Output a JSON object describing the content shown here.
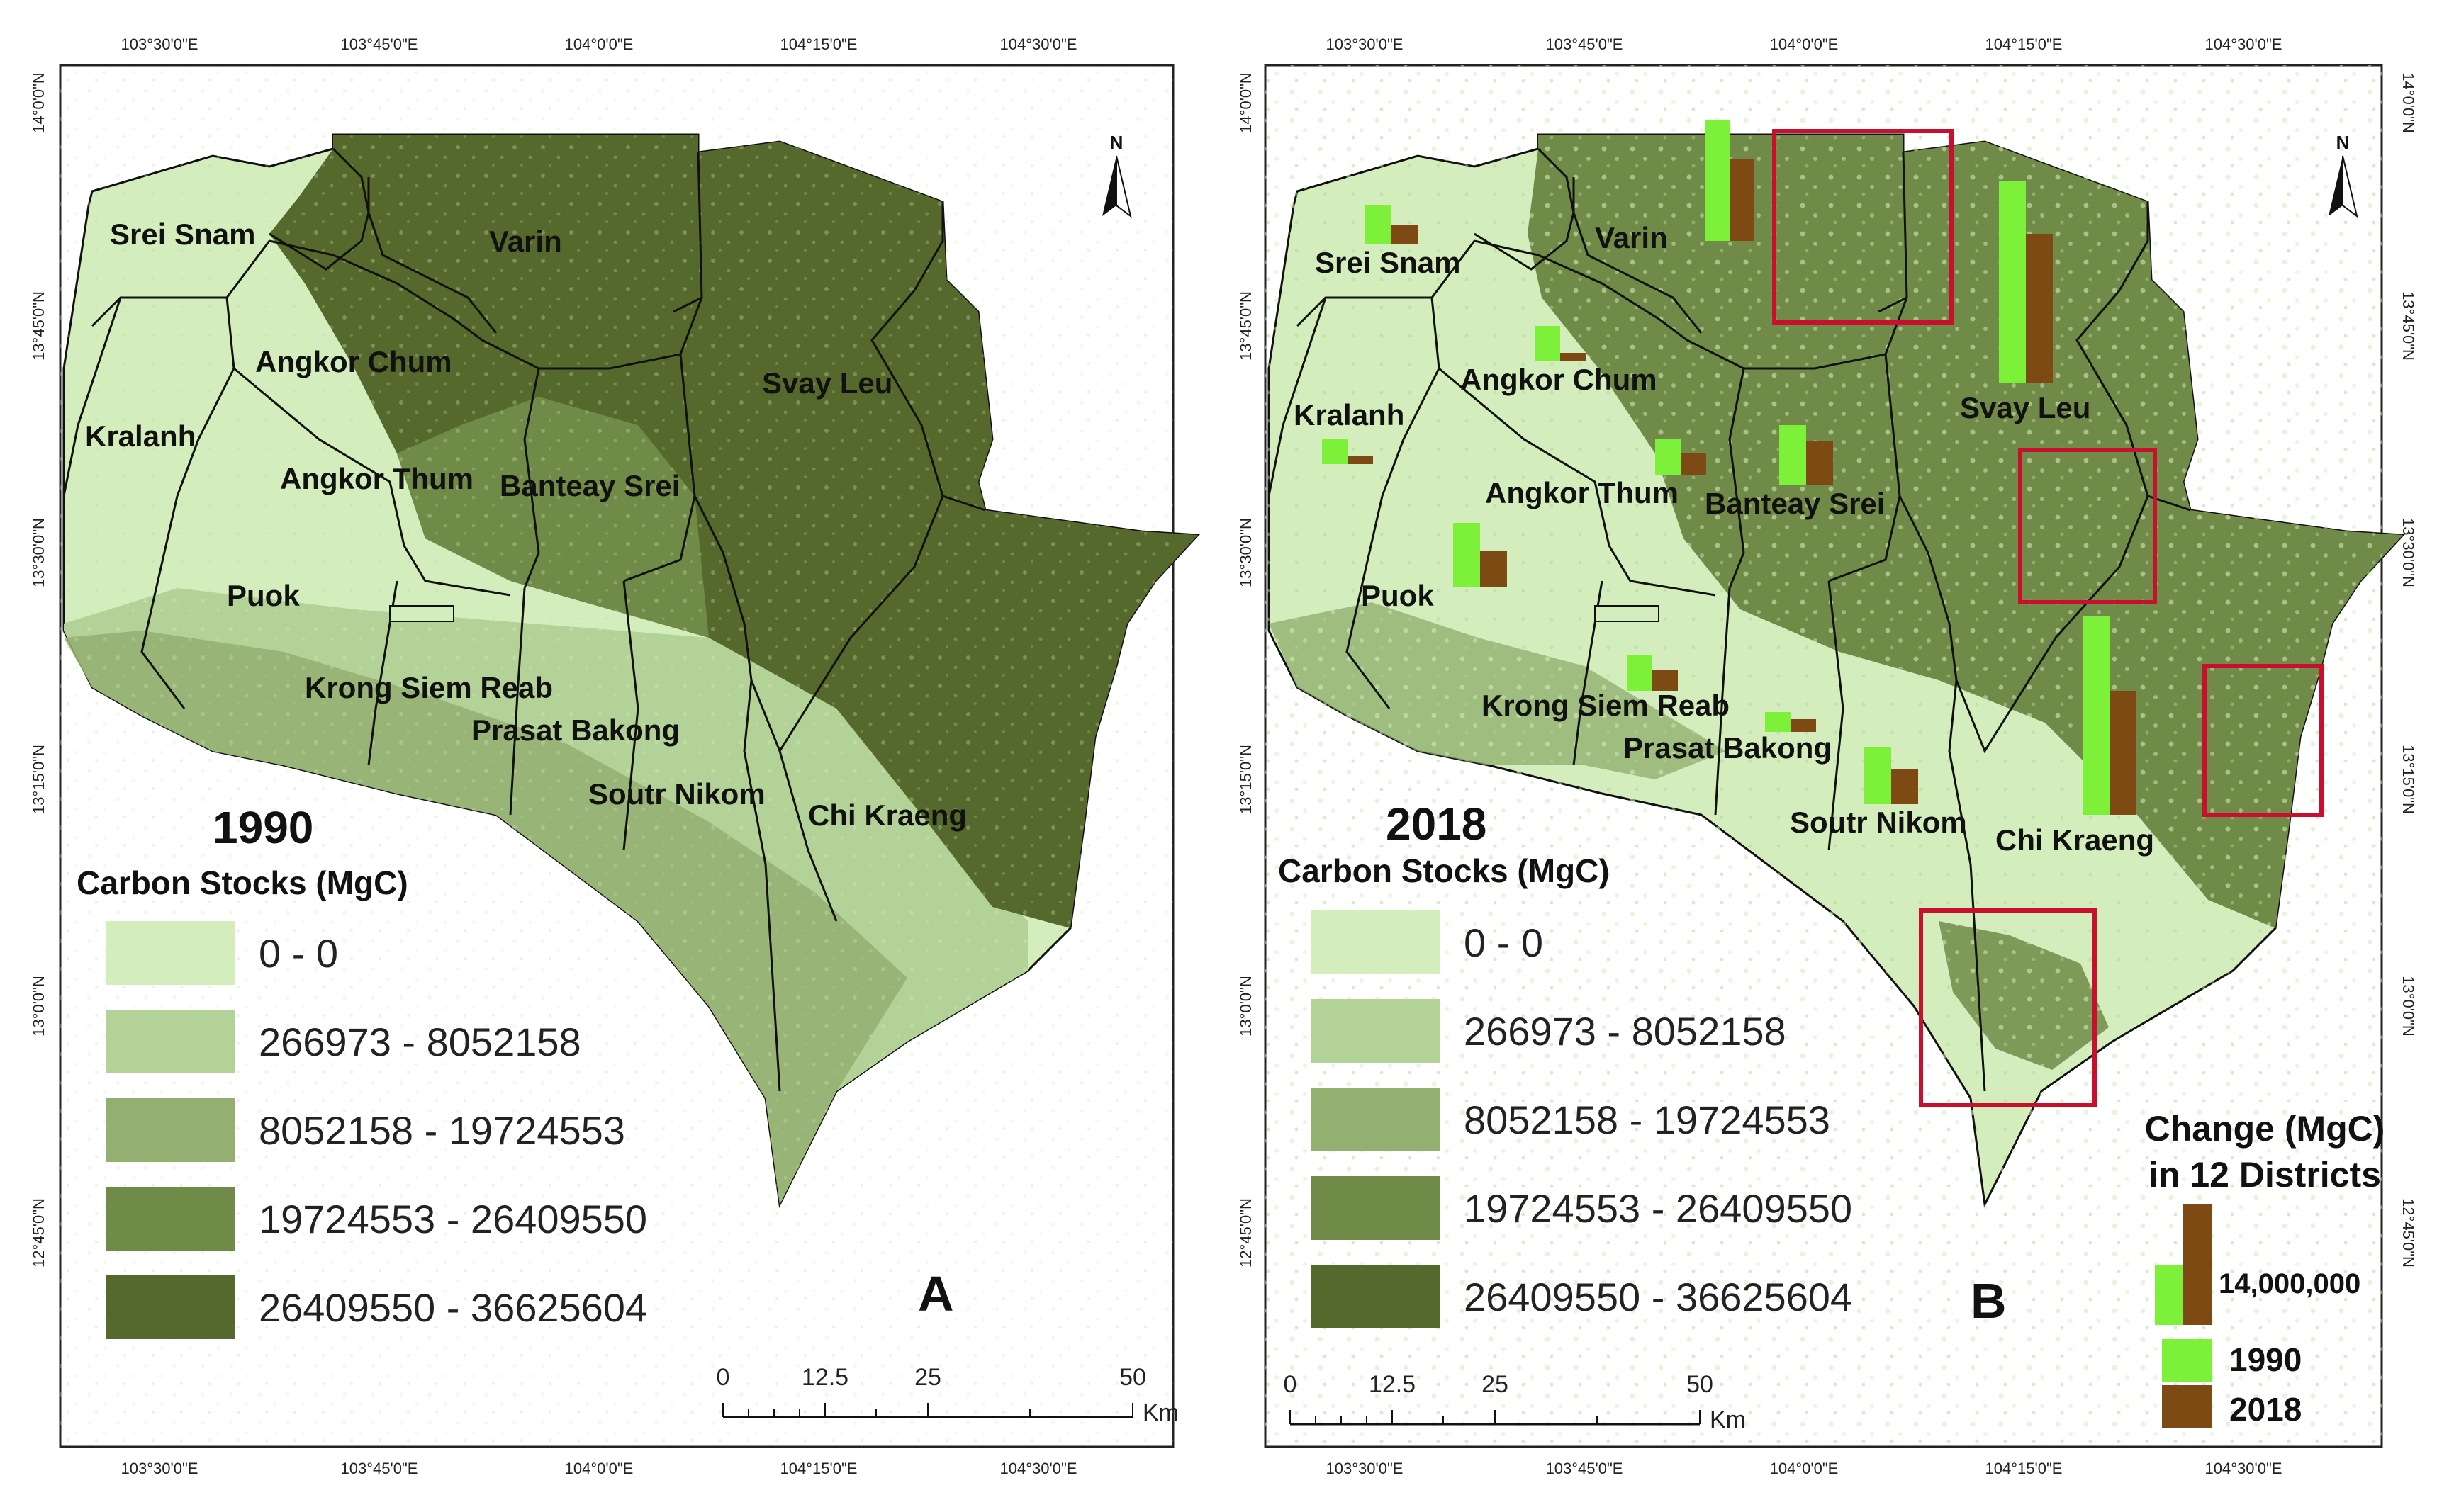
{
  "colors": {
    "class0": "#d3eebc",
    "class1": "#b3d297",
    "class2": "#93b071",
    "class3": "#708a48",
    "class4": "#56692c",
    "bar1990": "#7df03a",
    "bar2018": "#7c4a12",
    "highlight_box": "#c8102e"
  },
  "top_ticks": [
    "103°30'0\"E",
    "103°45'0\"E",
    "104°0'0\"E",
    "104°15'0\"E",
    "104°30'0\"E"
  ],
  "bottom_ticks": [
    "103°30'0\"E",
    "103°45'0\"E",
    "104°0'0\"E",
    "104°15'0\"E",
    "104°30'0\"E"
  ],
  "lat_ticks": [
    "14°0'0\"N",
    "13°45'0\"N",
    "13°30'0\"N",
    "13°15'0\"N",
    "13°0'0\"N",
    "12°45'0\"N"
  ],
  "north_label": "N",
  "legend_title": "Carbon Stocks (MgC)",
  "legend_classes": [
    {
      "label": "0 - 0",
      "color": "#d3eebc"
    },
    {
      "label": "266973 - 8052158",
      "color": "#b3d297"
    },
    {
      "label": "8052158 - 19724553",
      "color": "#93b071"
    },
    {
      "label": "19724553 - 26409550",
      "color": "#708a48"
    },
    {
      "label": "26409550 - 36625604",
      "color": "#56692c"
    }
  ],
  "scale_bar": {
    "ticks": [
      "0",
      "12.5",
      "25",
      "50"
    ],
    "unit": "Km"
  },
  "panel_a": {
    "year": "1990",
    "letter": "A",
    "districts": [
      "Srei Snam",
      "Varin",
      "Angkor Chum",
      "Svay Leu",
      "Kralanh",
      "Angkor Thum",
      "Banteay Srei",
      "Puok",
      "Krong Siem Reab",
      "Prasat Bakong",
      "Soutr Nikom",
      "Chi Kraeng"
    ]
  },
  "panel_b": {
    "year": "2018",
    "letter": "B",
    "districts": [
      "Srei Snam",
      "Varin",
      "Angkor Chum",
      "Svay Leu",
      "Kralanh",
      "Angkor Thum",
      "Banteay Srei",
      "Puok",
      "Krong Siem Reab",
      "Prasat Bakong",
      "Soutr Nikom",
      "Chi Kraeng"
    ],
    "change_legend": {
      "title_line1": "Change (MgC)",
      "title_line2": "in 12 Districts",
      "reference_value": "14,000,000",
      "series_1990": "1990",
      "series_2018": "2018"
    }
  }
}
